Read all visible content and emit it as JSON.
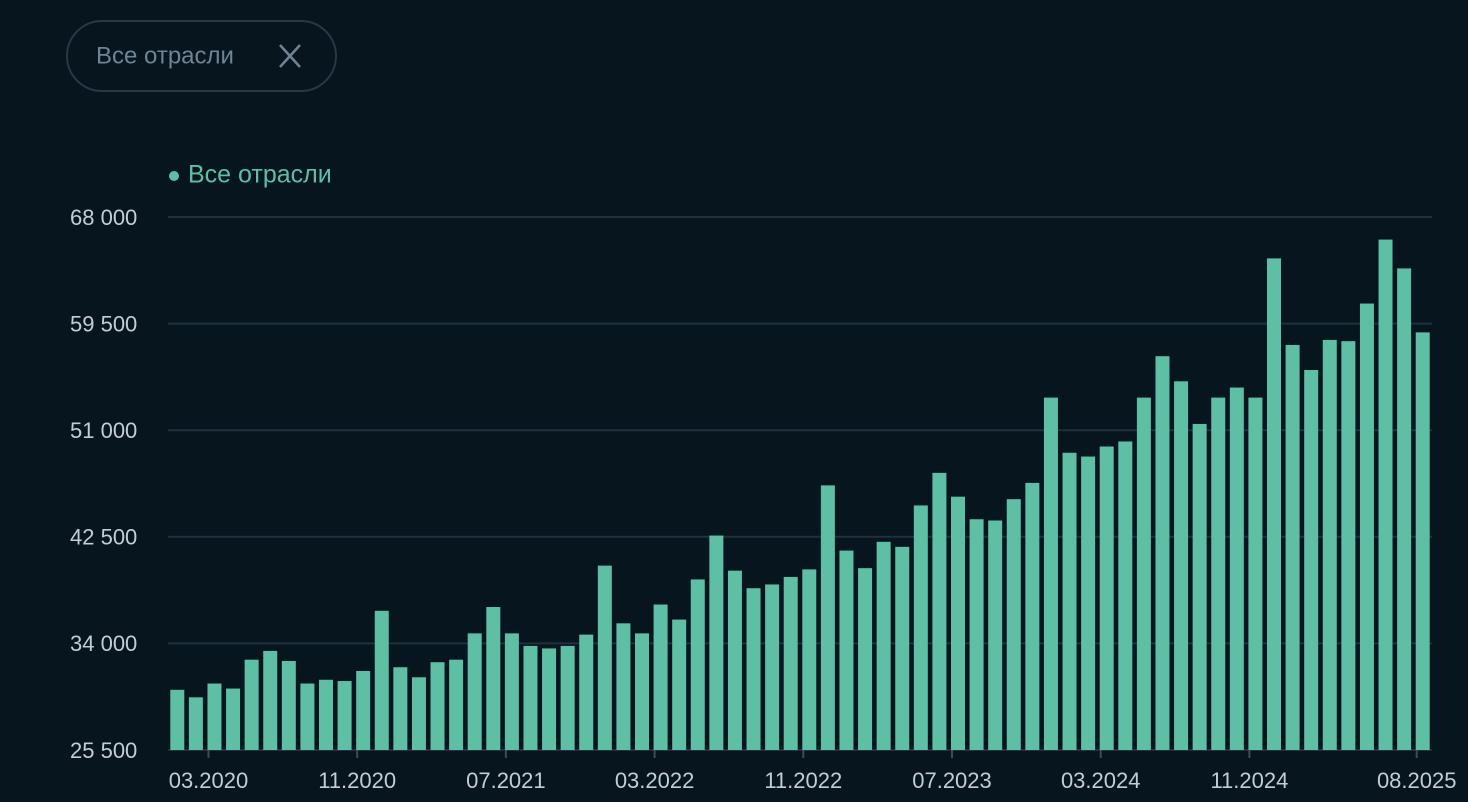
{
  "filter": {
    "label": "Все отрасли"
  },
  "chart_data": {
    "type": "bar",
    "categories": [
      null,
      null,
      "03.2020",
      null,
      null,
      null,
      null,
      null,
      null,
      null,
      "11.2020",
      null,
      null,
      null,
      null,
      null,
      null,
      null,
      "07.2021",
      null,
      null,
      null,
      null,
      null,
      null,
      null,
      "03.2022",
      null,
      null,
      null,
      null,
      null,
      null,
      null,
      "11.2022",
      null,
      null,
      null,
      null,
      null,
      null,
      null,
      "07.2023",
      null,
      null,
      null,
      null,
      null,
      null,
      null,
      "03.2024",
      null,
      null,
      null,
      null,
      null,
      null,
      null,
      "11.2024",
      null,
      null,
      null,
      null,
      null,
      null,
      null,
      null,
      "08.2025"
    ],
    "series": [
      {
        "name": "Все отрасли",
        "color": "#5fbfa5",
        "values": [
          30300,
          29700,
          30800,
          30400,
          32700,
          33400,
          32600,
          30800,
          31100,
          31000,
          31800,
          36600,
          32100,
          31300,
          32500,
          32700,
          34800,
          36900,
          34800,
          33800,
          33600,
          33800,
          34700,
          40200,
          35600,
          34800,
          37100,
          35900,
          39100,
          42600,
          39800,
          38400,
          38700,
          39300,
          39900,
          46600,
          41400,
          40000,
          42100,
          41700,
          45000,
          47600,
          45700,
          43900,
          43800,
          45500,
          46800,
          53600,
          49200,
          48900,
          49700,
          50100,
          53600,
          56900,
          54900,
          51500,
          53600,
          54400,
          53600,
          64700,
          57800,
          55800,
          58200,
          58100,
          61100,
          66200,
          63900,
          58800
        ]
      }
    ],
    "ylim": [
      25500,
      68000
    ],
    "yticks": [
      {
        "value": 25500,
        "label": "25 500"
      },
      {
        "value": 34000,
        "label": "34 000"
      },
      {
        "value": 42500,
        "label": "42 500"
      },
      {
        "value": 51000,
        "label": "51 000"
      },
      {
        "value": 59500,
        "label": "59 500"
      },
      {
        "value": 68000,
        "label": "68 000"
      }
    ],
    "grid": true,
    "legend": "top-left"
  }
}
